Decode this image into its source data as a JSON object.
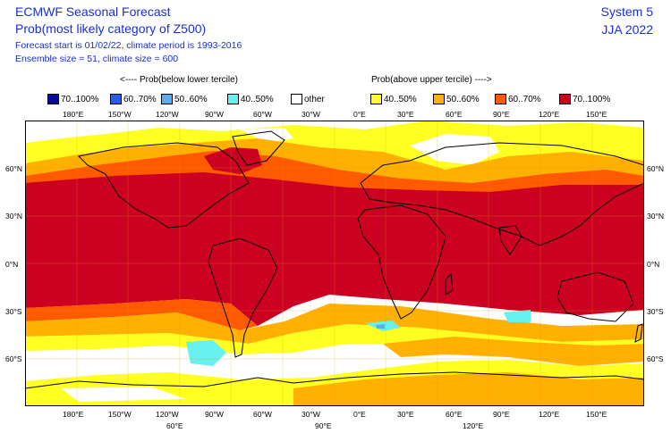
{
  "header": {
    "title": "ECMWF Seasonal Forecast",
    "subtitle": "Prob(most likely category of Z500)",
    "forecast_info": "Forecast start is 01/02/22, climate period is 1993-2016",
    "ensemble_info": "Ensemble size = 51, climate size = 600",
    "system": "System 5",
    "season": "JJA 2022"
  },
  "legend": {
    "below_label": "<---- Prob(below lower tercile)",
    "above_label": "Prob(above upper tercile) ---->",
    "items": [
      {
        "label": "70..100%",
        "color": "#0a0a9a"
      },
      {
        "label": "60..70%",
        "color": "#2a5be8"
      },
      {
        "label": "50..60%",
        "color": "#5aaef0"
      },
      {
        "label": "40..50%",
        "color": "#66f0f0"
      },
      {
        "label": "other",
        "color": "#ffffff"
      },
      {
        "label": "40..50%",
        "color": "#ffff22"
      },
      {
        "label": "50..60%",
        "color": "#ffb000"
      },
      {
        "label": "60..70%",
        "color": "#ff5a00"
      },
      {
        "label": "70..100%",
        "color": "#cc0020"
      }
    ]
  },
  "axes": {
    "top_lon": [
      "180°E",
      "150°W",
      "120°W",
      "90°W",
      "60°W",
      "30°W",
      "0°E",
      "30°E",
      "60°E",
      "90°E",
      "120°E",
      "150°E"
    ],
    "bottom_lon": [
      "180°E",
      "150°W",
      "120°W",
      "90°W",
      "60°W",
      "30°W",
      "0°E",
      "30°E",
      "60°E",
      "90°E",
      "120°E",
      "150°E"
    ],
    "bottom_lon2": [
      "60°E",
      "90°E",
      "120°E"
    ],
    "lat_left": [
      "60°N",
      "30°N",
      "0°N",
      "30°S",
      "60°S"
    ],
    "lat_right": [
      "60°N",
      "30°N",
      "0°N",
      "30°S",
      "60°S"
    ]
  }
}
